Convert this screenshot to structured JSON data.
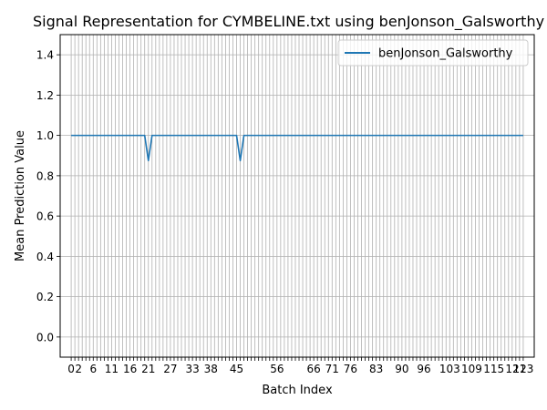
{
  "chart_data": {
    "type": "line",
    "title": "Signal Representation for CYMBELINE.txt using benJonson_Galsworthy",
    "xlabel": "Batch Index",
    "ylabel": "Mean Prediction Value",
    "ylim": [
      -0.1,
      1.5
    ],
    "xlim": [
      -3,
      126
    ],
    "yticks": [
      "0.0",
      "0.2",
      "0.4",
      "0.6",
      "0.8",
      "1.0",
      "1.2",
      "1.4"
    ],
    "xticks_visible": [
      "0",
      "2",
      "6",
      "11",
      "16",
      "21",
      "27",
      "33",
      "38",
      "45",
      "56",
      "66",
      "71",
      "76",
      "83",
      "90",
      "96",
      "103",
      "109",
      "115",
      "121",
      "123"
    ],
    "grid": true,
    "legend_position": "top-right",
    "line_color": "#1f77b4",
    "x": [
      0,
      1,
      2,
      3,
      4,
      5,
      6,
      7,
      8,
      9,
      10,
      11,
      12,
      13,
      14,
      15,
      16,
      17,
      18,
      19,
      20,
      21,
      22,
      23,
      24,
      25,
      26,
      27,
      28,
      29,
      30,
      31,
      32,
      33,
      34,
      35,
      36,
      37,
      38,
      39,
      40,
      41,
      42,
      43,
      44,
      45,
      46,
      47,
      48,
      49,
      50,
      51,
      52,
      53,
      54,
      55,
      56,
      57,
      58,
      59,
      60,
      61,
      62,
      63,
      64,
      65,
      66,
      67,
      68,
      69,
      70,
      71,
      72,
      73,
      74,
      75,
      76,
      77,
      78,
      79,
      80,
      81,
      82,
      83,
      84,
      85,
      86,
      87,
      88,
      89,
      90,
      91,
      92,
      93,
      94,
      95,
      96,
      97,
      98,
      99,
      100,
      101,
      102,
      103,
      104,
      105,
      106,
      107,
      108,
      109,
      110,
      111,
      112,
      113,
      114,
      115,
      116,
      117,
      118,
      119,
      120,
      121,
      122,
      123
    ],
    "series": [
      {
        "name": "benJonson_Galsworthy",
        "values": [
          1,
          1,
          1,
          1,
          1,
          1,
          1,
          1,
          1,
          1,
          1,
          1,
          1,
          1,
          1,
          1,
          1,
          1,
          1,
          1,
          1,
          0.875,
          1,
          1,
          1,
          1,
          1,
          1,
          1,
          1,
          1,
          1,
          1,
          1,
          1,
          1,
          1,
          1,
          1,
          1,
          1,
          1,
          1,
          1,
          1,
          1,
          0.875,
          1,
          1,
          1,
          1,
          1,
          1,
          1,
          1,
          1,
          1,
          1,
          1,
          1,
          1,
          1,
          1,
          1,
          1,
          1,
          1,
          1,
          1,
          1,
          1,
          1,
          1,
          1,
          1,
          1,
          1,
          1,
          1,
          1,
          1,
          1,
          1,
          1,
          1,
          1,
          1,
          1,
          1,
          1,
          1,
          1,
          1,
          1,
          1,
          1,
          1,
          1,
          1,
          1,
          1,
          1,
          1,
          1,
          1,
          1,
          1,
          1,
          1,
          1,
          1,
          1,
          1,
          1,
          1,
          1,
          1,
          1,
          1,
          1,
          1,
          1,
          1,
          1
        ]
      }
    ]
  }
}
